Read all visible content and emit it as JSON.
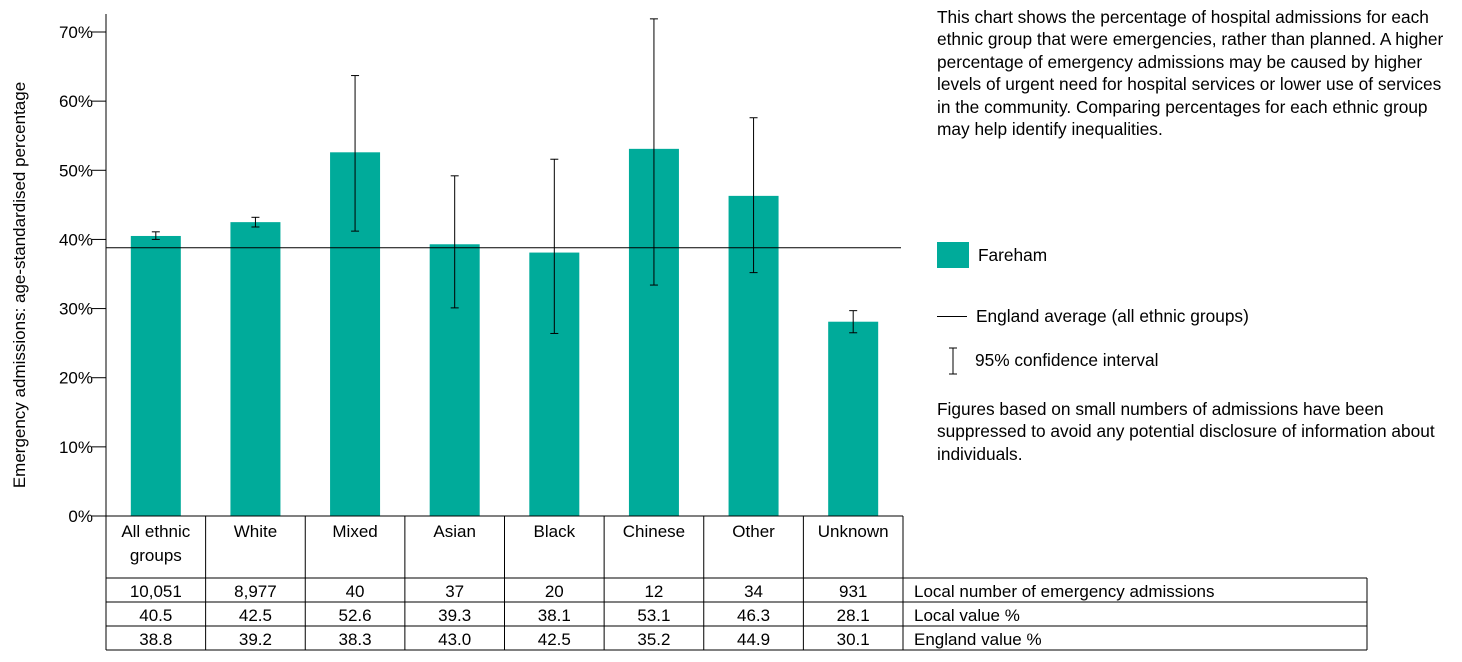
{
  "chart_data": {
    "type": "bar",
    "ylabel": "Emergency admissions: age-standardised percentage",
    "ylim": [
      0,
      70
    ],
    "yticks": [
      "0%",
      "10%",
      "20%",
      "30%",
      "40%",
      "50%",
      "60%",
      "70%"
    ],
    "ytick_values": [
      0,
      10,
      20,
      30,
      40,
      50,
      60,
      70
    ],
    "categories": [
      "All ethnic groups",
      "White",
      "Mixed",
      "Asian",
      "Black",
      "Chinese",
      "Other",
      "Unknown"
    ],
    "series": [
      {
        "name": "Fareham",
        "color": "#00ab9a",
        "values": [
          40.5,
          42.5,
          52.6,
          39.3,
          38.1,
          53.1,
          46.3,
          28.1
        ],
        "ci_lower": [
          40.0,
          41.8,
          41.2,
          30.1,
          26.4,
          33.4,
          35.2,
          26.5
        ],
        "ci_upper": [
          41.1,
          43.2,
          63.7,
          49.2,
          51.6,
          71.9,
          57.6,
          29.7
        ]
      }
    ],
    "england_average": 38.8,
    "grid": false
  },
  "table": {
    "rows": [
      {
        "label": "Local number of emergency admissions",
        "cells": [
          "10,051",
          "8,977",
          "40",
          "37",
          "20",
          "12",
          "34",
          "931"
        ]
      },
      {
        "label": "Local value %",
        "cells": [
          "40.5",
          "42.5",
          "52.6",
          "39.3",
          "38.1",
          "53.1",
          "46.3",
          "28.1"
        ]
      },
      {
        "label": "England value %",
        "cells": [
          "38.8",
          "39.2",
          "38.3",
          "43.0",
          "42.5",
          "35.2",
          "44.9",
          "30.1"
        ]
      }
    ]
  },
  "description": "This chart shows the percentage of hospital admissions for each ethnic group that were emergencies, rather than planned. A higher percentage of emergency admissions may be caused by higher levels of urgent need for hospital services or lower use of services in the community. Comparing percentages for each ethnic group may help identify inequalities.",
  "legend": {
    "local": "Fareham",
    "local_color": "#00ab9a",
    "england": "England average (all ethnic groups)",
    "ci": "95% confidence interval"
  },
  "note": "Figures based on small numbers of admissions have been suppressed to avoid any potential disclosure of information about individuals."
}
